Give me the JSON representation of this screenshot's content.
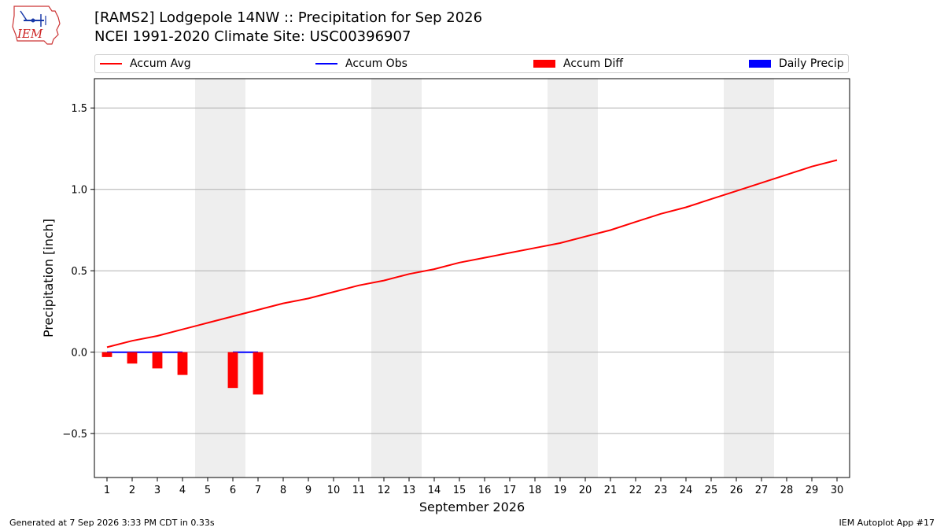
{
  "header": {
    "title_line1": "[RAMS2] Lodgepole 14NW :: Precipitation for Sep 2026",
    "title_line2": "NCEI 1991-2020 Climate Site: USC00396907",
    "logo_text": "IEM"
  },
  "legend": {
    "items": [
      {
        "label": "Accum Avg",
        "kind": "line",
        "color": "#ff0000"
      },
      {
        "label": "Accum Obs",
        "kind": "line",
        "color": "#0000ff"
      },
      {
        "label": "Accum Diff",
        "kind": "bar",
        "color": "#ff0000"
      },
      {
        "label": "Daily Precip",
        "kind": "bar",
        "color": "#0000ff"
      }
    ]
  },
  "footer": {
    "left": "Generated at 7 Sep 2026 3:33 PM CDT in 0.33s",
    "right": "IEM Autoplot App #17"
  },
  "chart_data": {
    "type": "line",
    "xlabel": "September 2026",
    "ylabel": "Precipitation [inch]",
    "xlim": [
      0.5,
      30.5
    ],
    "ylim": [
      -0.77,
      1.68
    ],
    "x_ticks": [
      1,
      2,
      3,
      4,
      5,
      6,
      7,
      8,
      9,
      10,
      11,
      12,
      13,
      14,
      15,
      16,
      17,
      18,
      19,
      20,
      21,
      22,
      23,
      24,
      25,
      26,
      27,
      28,
      29,
      30
    ],
    "y_ticks": [
      -0.5,
      0.0,
      0.5,
      1.0,
      1.5
    ],
    "y_tick_labels": [
      "−0.5",
      "0.0",
      "0.5",
      "1.0",
      "1.5"
    ],
    "grid": "horizontal",
    "weekend_shading": [
      [
        5,
        6
      ],
      [
        12,
        13
      ],
      [
        19,
        20
      ],
      [
        26,
        27
      ]
    ],
    "shade_color": "#eeeeee",
    "series": [
      {
        "name": "Accum Avg",
        "kind": "line",
        "color": "#ff0000",
        "x": [
          1,
          2,
          3,
          4,
          5,
          6,
          7,
          8,
          9,
          10,
          11,
          12,
          13,
          14,
          15,
          16,
          17,
          18,
          19,
          20,
          21,
          22,
          23,
          24,
          25,
          26,
          27,
          28,
          29,
          30
        ],
        "values": [
          0.03,
          0.07,
          0.1,
          0.14,
          0.18,
          0.22,
          0.26,
          0.3,
          0.33,
          0.37,
          0.41,
          0.44,
          0.48,
          0.51,
          0.55,
          0.58,
          0.61,
          0.64,
          0.67,
          0.71,
          0.75,
          0.8,
          0.85,
          0.89,
          0.94,
          0.99,
          1.04,
          1.09,
          1.14,
          1.18
        ]
      },
      {
        "name": "Accum Obs",
        "kind": "line",
        "color": "#0000ff",
        "x": [
          1,
          2,
          3,
          4,
          5,
          6,
          7
        ],
        "values": [
          0.0,
          0.0,
          0.0,
          0.0,
          0.0,
          0.0,
          0.0
        ],
        "segments": [
          [
            1,
            4
          ],
          [
            6,
            7
          ]
        ]
      },
      {
        "name": "Accum Diff",
        "kind": "bar",
        "color": "#ff0000",
        "x": [
          1,
          2,
          3,
          4,
          6,
          7
        ],
        "values": [
          -0.03,
          -0.07,
          -0.1,
          -0.14,
          -0.22,
          -0.26
        ]
      },
      {
        "name": "Daily Precip",
        "kind": "bar",
        "color": "#0000ff",
        "x": [
          1,
          2,
          3,
          4,
          6,
          7
        ],
        "values": [
          0.0,
          0.0,
          0.0,
          0.0,
          0.0,
          0.0
        ]
      }
    ]
  }
}
